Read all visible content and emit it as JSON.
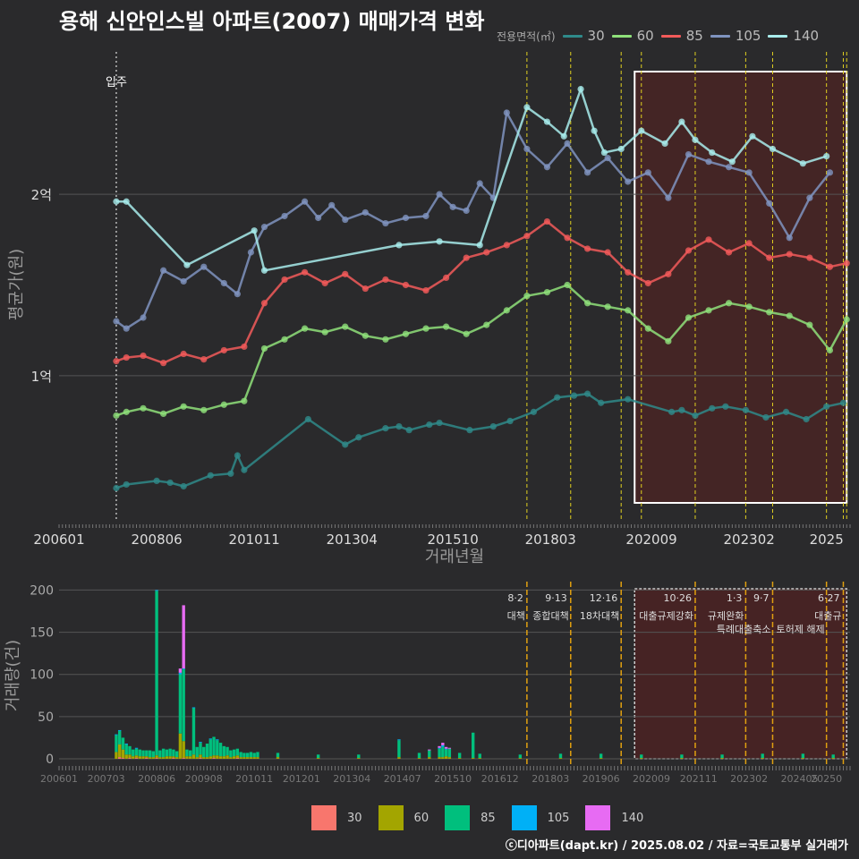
{
  "title": "용해 신안인스빌 아파트(2007) 매매가격 변화",
  "legend_title": "전용면적(㎡)",
  "footer": "ⓒ디아파트(dapt.kr) / 2025.08.02 / 자료=국토교통부 실거래가",
  "colors": {
    "s30": "#2f8a8a",
    "s60": "#8fe07a",
    "s85": "#f25a5a",
    "s105": "#7f93bf",
    "s140": "#a8ecec",
    "bar30": "#f8766d",
    "bar60": "#a3a500",
    "bar85": "#00bf7d",
    "bar105": "#00b0f6",
    "bar140": "#e76bf3",
    "highlight": "#5a2020"
  },
  "chart_data": [
    {
      "type": "line",
      "title": "용해 신안인스빌 아파트(2007) 매매가격 변화",
      "xlabel": "거래년월",
      "ylabel": "평균가(원)",
      "x_range": [
        "2006-01",
        "2025-08"
      ],
      "x_ticks": [
        "200601",
        "200806",
        "201011",
        "201304",
        "201510",
        "201803",
        "202009",
        "202302",
        "2025"
      ],
      "y_ticks": [
        {
          "value": 10000,
          "label": "1억"
        },
        {
          "value": 20000,
          "label": "2억"
        }
      ],
      "ylim": [
        2000,
        28000
      ],
      "legend": [
        "30",
        "60",
        "85",
        "105",
        "140"
      ],
      "annotation": {
        "label": "입주",
        "x": "2007-06"
      },
      "highlight_range": [
        "2020-04",
        "2025-07"
      ],
      "policy_dates": [
        "2017-08",
        "2018-09",
        "2019-12",
        "2020-06",
        "2021-10",
        "2023-01",
        "2023-09",
        "2025-01",
        "2025-06",
        "2025-07"
      ],
      "series": [
        {
          "name": "30",
          "x": [
            "2007-06",
            "2007-09",
            "2008-06",
            "2008-10",
            "2009-02",
            "2009-10",
            "2010-04",
            "2010-06",
            "2010-08",
            "2012-03",
            "2013-02",
            "2013-06",
            "2014-02",
            "2014-06",
            "2014-09",
            "2015-03",
            "2015-06",
            "2016-03",
            "2016-10",
            "2017-03",
            "2017-10",
            "2018-05",
            "2018-10",
            "2019-02",
            "2019-06",
            "2020-02",
            "2021-03",
            "2021-06",
            "2021-10",
            "2022-03",
            "2022-07",
            "2023-01",
            "2023-07",
            "2024-01",
            "2024-07",
            "2025-01",
            "2025-06"
          ],
          "values": [
            3800,
            4000,
            4200,
            4100,
            3900,
            4500,
            4600,
            5600,
            4800,
            7600,
            6200,
            6600,
            7100,
            7200,
            7000,
            7300,
            7400,
            7000,
            7200,
            7500,
            8000,
            8800,
            8900,
            9000,
            8500,
            8700,
            8000,
            8100,
            7800,
            8200,
            8300,
            8100,
            7700,
            8000,
            7600,
            8300,
            8500
          ]
        },
        {
          "name": "60",
          "x": [
            "2007-06",
            "2007-09",
            "2008-02",
            "2008-08",
            "2009-02",
            "2009-08",
            "2010-02",
            "2010-08",
            "2011-02",
            "2011-08",
            "2012-02",
            "2012-08",
            "2013-02",
            "2013-08",
            "2014-02",
            "2014-08",
            "2015-02",
            "2015-08",
            "2016-02",
            "2016-08",
            "2017-02",
            "2017-08",
            "2018-02",
            "2018-08",
            "2019-02",
            "2019-08",
            "2020-02",
            "2020-08",
            "2021-02",
            "2021-08",
            "2022-02",
            "2022-08",
            "2023-02",
            "2023-08",
            "2024-02",
            "2024-08",
            "2025-02",
            "2025-07"
          ],
          "values": [
            7800,
            8000,
            8200,
            7900,
            8300,
            8100,
            8400,
            8600,
            11500,
            12000,
            12600,
            12400,
            12700,
            12200,
            12000,
            12300,
            12600,
            12700,
            12300,
            12800,
            13600,
            14400,
            14600,
            15000,
            14000,
            13800,
            13600,
            12600,
            11900,
            13200,
            13600,
            14000,
            13800,
            13500,
            13300,
            12800,
            11400,
            13100
          ]
        },
        {
          "name": "85",
          "x": [
            "2007-06",
            "2007-09",
            "2008-02",
            "2008-08",
            "2009-02",
            "2009-08",
            "2010-02",
            "2010-08",
            "2011-02",
            "2011-08",
            "2012-02",
            "2012-08",
            "2013-02",
            "2013-08",
            "2014-02",
            "2014-08",
            "2015-02",
            "2015-08",
            "2016-02",
            "2016-08",
            "2017-02",
            "2017-08",
            "2018-02",
            "2018-08",
            "2019-02",
            "2019-08",
            "2020-02",
            "2020-08",
            "2021-02",
            "2021-08",
            "2022-02",
            "2022-08",
            "2023-02",
            "2023-08",
            "2024-02",
            "2024-08",
            "2025-02",
            "2025-07"
          ],
          "values": [
            10800,
            11000,
            11100,
            10700,
            11200,
            10900,
            11400,
            11600,
            14000,
            15300,
            15700,
            15100,
            15600,
            14800,
            15300,
            15000,
            14700,
            15400,
            16500,
            16800,
            17200,
            17700,
            18500,
            17600,
            17000,
            16800,
            15700,
            15100,
            15600,
            16900,
            17500,
            16800,
            17300,
            16500,
            16700,
            16500,
            16000,
            16200
          ]
        },
        {
          "name": "105",
          "x": [
            "2007-06",
            "2007-09",
            "2008-02",
            "2008-08",
            "2009-02",
            "2009-08",
            "2010-02",
            "2010-06",
            "2010-10",
            "2011-02",
            "2011-08",
            "2012-02",
            "2012-06",
            "2012-10",
            "2013-02",
            "2013-08",
            "2014-02",
            "2014-08",
            "2015-02",
            "2015-06",
            "2015-10",
            "2016-02",
            "2016-06",
            "2016-10",
            "2017-02",
            "2017-08",
            "2018-02",
            "2018-08",
            "2019-02",
            "2019-08",
            "2020-02",
            "2020-08",
            "2021-02",
            "2021-08",
            "2022-02",
            "2022-08",
            "2023-02",
            "2023-08",
            "2024-02",
            "2024-08",
            "2025-02"
          ],
          "values": [
            13000,
            12600,
            13200,
            15800,
            15200,
            16000,
            15100,
            14500,
            16800,
            18200,
            18800,
            19600,
            18700,
            19400,
            18600,
            19000,
            18400,
            18700,
            18800,
            20000,
            19300,
            19100,
            20600,
            19800,
            24500,
            22500,
            21500,
            22800,
            21200,
            22000,
            20700,
            21200,
            19800,
            22200,
            21800,
            21500,
            21200,
            19500,
            17600,
            19800,
            21200
          ]
        },
        {
          "name": "140",
          "x": [
            "2007-06",
            "2007-09",
            "2009-03",
            "2010-11",
            "2011-02",
            "2014-06",
            "2015-06",
            "2016-06",
            "2017-08",
            "2018-02",
            "2018-07",
            "2018-12",
            "2019-04",
            "2019-07",
            "2019-12",
            "2020-06",
            "2021-01",
            "2021-06",
            "2021-10",
            "2022-03",
            "2022-09",
            "2023-03",
            "2023-09",
            "2024-06",
            "2025-01"
          ],
          "values": [
            19600,
            19600,
            16100,
            18000,
            15800,
            17200,
            17400,
            17200,
            24800,
            24000,
            23200,
            25800,
            23500,
            22300,
            22500,
            23500,
            22800,
            24000,
            23000,
            22300,
            21800,
            23200,
            22500,
            21700,
            22100
          ]
        }
      ]
    },
    {
      "type": "bar",
      "xlabel": "",
      "ylabel": "거래량(건)",
      "x_range": [
        "2006-01",
        "2025-08"
      ],
      "x_ticks": [
        "200601",
        "200703",
        "200806",
        "200908",
        "201011",
        "201201",
        "201304",
        "201407",
        "201510",
        "201612",
        "201803",
        "201906",
        "202009",
        "202111",
        "202302",
        "202405",
        "20250"
      ],
      "y_ticks": [
        0,
        50,
        100,
        150,
        200
      ],
      "ylim": [
        0,
        210
      ],
      "legend": [
        "30",
        "60",
        "85",
        "105",
        "140"
      ],
      "highlight_range": [
        "2020-04",
        "2025-07"
      ],
      "annotations": [
        {
          "date": "8·2",
          "label": "대책",
          "x": "2017-08"
        },
        {
          "date": "9·13",
          "label": "종합대책",
          "x": "2018-09"
        },
        {
          "date": "12·16",
          "label": "18차대책",
          "x": "2019-12"
        },
        {
          "date": "10·26",
          "label": "대출규제강화",
          "x": "2021-10"
        },
        {
          "date": "1·3",
          "label": "규제완화",
          "x": "2023-01"
        },
        {
          "date": "9·7",
          "label": "특례대출축소",
          "x": "2023-09"
        },
        {
          "date": "",
          "label": "토허제 해제",
          "x": "2025-01"
        },
        {
          "date": "6·27",
          "label": "대출규",
          "x": "2025-06"
        }
      ],
      "months": [
        "2007-06",
        "2007-07",
        "2007-08",
        "2007-09",
        "2007-10",
        "2007-11",
        "2007-12",
        "2008-01",
        "2008-02",
        "2008-03",
        "2008-04",
        "2008-05",
        "2008-06",
        "2008-07",
        "2008-08",
        "2008-09",
        "2008-10",
        "2008-11",
        "2008-12",
        "2009-01",
        "2009-02",
        "2009-03",
        "2009-04",
        "2009-05",
        "2009-06",
        "2009-07",
        "2009-08",
        "2009-09",
        "2009-10",
        "2009-11",
        "2009-12",
        "2010-01",
        "2010-02",
        "2010-03",
        "2010-04",
        "2010-05",
        "2010-06",
        "2010-07",
        "2010-08",
        "2010-09",
        "2010-10",
        "2010-11",
        "2010-12",
        "2011-06",
        "2012-06",
        "2013-06",
        "2014-06",
        "2014-12",
        "2015-03",
        "2015-06",
        "2015-07",
        "2015-08",
        "2015-09",
        "2015-12",
        "2016-04",
        "2016-06",
        "2017-06",
        "2018-06",
        "2019-06",
        "2020-06",
        "2021-06",
        "2022-06",
        "2023-06",
        "2024-06",
        "2025-03"
      ],
      "series": [
        {
          "name": "30",
          "values": [
            0,
            2,
            1,
            0,
            1,
            0,
            1,
            0,
            0,
            1,
            0,
            0,
            1,
            0,
            0,
            0,
            0,
            1,
            0,
            0,
            1,
            0,
            0,
            0,
            0,
            1,
            0,
            0,
            0,
            1,
            0,
            0,
            0,
            0,
            0,
            0,
            1,
            0,
            0,
            0,
            0,
            0,
            0,
            0,
            0,
            0,
            0,
            0,
            0,
            0,
            0,
            0,
            0,
            0,
            0,
            0,
            0,
            0,
            0,
            0,
            0,
            0,
            0,
            0,
            0
          ]
        },
        {
          "name": "60",
          "values": [
            8,
            15,
            10,
            5,
            4,
            3,
            3,
            3,
            3,
            2,
            2,
            2,
            3,
            2,
            2,
            3,
            3,
            2,
            2,
            30,
            20,
            3,
            3,
            5,
            2,
            4,
            2,
            2,
            3,
            3,
            4,
            3,
            3,
            4,
            2,
            3,
            3,
            2,
            2,
            2,
            2,
            2,
            2,
            2,
            1,
            1,
            2,
            1,
            2,
            2,
            2,
            3,
            2,
            1,
            1,
            1,
            1,
            1,
            1,
            1,
            1,
            1,
            1,
            1,
            1
          ]
        },
        {
          "name": "85",
          "values": [
            20,
            16,
            14,
            12,
            10,
            8,
            8,
            8,
            7,
            7,
            8,
            7,
            195,
            8,
            10,
            8,
            9,
            8,
            7,
            70,
            85,
            8,
            7,
            55,
            12,
            14,
            12,
            16,
            20,
            22,
            18,
            16,
            12,
            10,
            8,
            8,
            8,
            6,
            5,
            5,
            6,
            5,
            6,
            5,
            4,
            4,
            20,
            6,
            8,
            10,
            12,
            8,
            10,
            6,
            30,
            5,
            4,
            5,
            5,
            4,
            4,
            4,
            5,
            5,
            4
          ]
        },
        {
          "name": "105",
          "values": [
            1,
            1,
            0,
            1,
            0,
            0,
            1,
            0,
            0,
            0,
            0,
            0,
            1,
            0,
            0,
            0,
            0,
            0,
            0,
            2,
            1,
            0,
            0,
            1,
            0,
            1,
            0,
            0,
            1,
            0,
            1,
            0,
            0,
            0,
            0,
            0,
            0,
            0,
            0,
            0,
            0,
            0,
            0,
            0,
            0,
            0,
            1,
            0,
            0,
            1,
            2,
            1,
            0,
            0,
            0,
            0,
            0,
            0,
            0,
            0,
            0,
            0,
            0,
            0,
            0
          ]
        },
        {
          "name": "140",
          "values": [
            0,
            0,
            0,
            0,
            0,
            0,
            0,
            0,
            0,
            0,
            0,
            0,
            0,
            0,
            0,
            0,
            0,
            0,
            0,
            5,
            75,
            0,
            0,
            0,
            0,
            0,
            0,
            0,
            0,
            0,
            0,
            0,
            0,
            0,
            0,
            0,
            0,
            0,
            0,
            0,
            0,
            0,
            0,
            0,
            0,
            0,
            0,
            0,
            1,
            2,
            3,
            2,
            1,
            0,
            0,
            0,
            0,
            0,
            0,
            0,
            0,
            0,
            0,
            0,
            0
          ]
        }
      ]
    }
  ]
}
